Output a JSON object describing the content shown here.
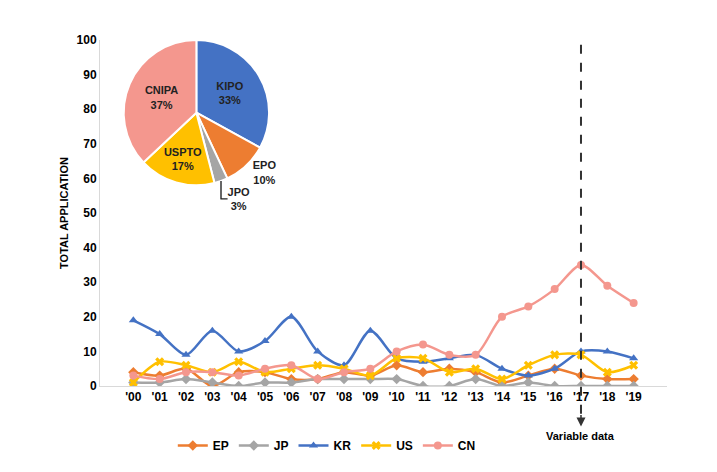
{
  "chart_data": [
    {
      "type": "line",
      "categories": [
        "'00",
        "'01",
        "'02",
        "'03",
        "'04",
        "'05",
        "'06",
        "'07",
        "'08",
        "'09",
        "'10",
        "'11",
        "'12",
        "'13",
        "'14",
        "'15",
        "'16",
        "'17",
        "'18",
        "'19"
      ],
      "series": [
        {
          "name": "EP",
          "color": "#ed7d31",
          "marker": "diamond",
          "values": [
            4,
            3,
            5,
            0,
            4,
            4,
            2,
            2,
            4,
            3,
            6,
            4,
            5,
            4,
            1,
            3,
            5,
            3,
            2,
            2
          ]
        },
        {
          "name": "JP",
          "color": "#a5a5a5",
          "marker": "diamond",
          "values": [
            1,
            1,
            2,
            1,
            0,
            1,
            1,
            2,
            2,
            2,
            2,
            0,
            0,
            2,
            0,
            1,
            0,
            0,
            0,
            0
          ]
        },
        {
          "name": "KR",
          "color": "#4472c4",
          "marker": "triangle",
          "values": [
            19,
            15,
            9,
            16,
            10,
            13,
            20,
            10,
            6,
            16,
            8,
            7,
            8,
            9,
            5,
            3,
            5,
            10,
            10,
            8
          ]
        },
        {
          "name": "US",
          "color": "#ffc000",
          "marker": "x",
          "values": [
            1,
            7,
            6,
            4,
            7,
            4,
            5,
            6,
            5,
            3,
            8,
            8,
            4,
            5,
            2,
            6,
            9,
            9,
            4,
            6
          ]
        },
        {
          "name": "CN",
          "color": "#f4978e",
          "marker": "circle",
          "values": [
            3,
            2,
            4,
            4,
            3,
            5,
            6,
            2,
            4,
            5,
            10,
            12,
            9,
            9,
            20,
            23,
            28,
            35,
            29,
            24
          ]
        }
      ],
      "y_label": "TOTAL APPLICATION",
      "ylim": [
        0,
        100
      ],
      "yticks": [
        0,
        10,
        20,
        30,
        40,
        50,
        60,
        70,
        80,
        90,
        100
      ],
      "grid": false,
      "legend": "bottom",
      "line_style": "smooth",
      "annotations": [
        {
          "text": "Variable data",
          "x": "'17"
        }
      ]
    },
    {
      "type": "pie",
      "labels": [
        "KIPO",
        "EPO",
        "JPO",
        "USPTO",
        "CNIPA"
      ],
      "values": [
        33,
        10,
        3,
        17,
        37
      ],
      "value_labels": [
        "33%",
        "10%",
        "3%",
        "17%",
        "37%"
      ],
      "colors": [
        "#4472c4",
        "#ed7d31",
        "#a5a5a5",
        "#ffc000",
        "#f4978e"
      ]
    }
  ]
}
